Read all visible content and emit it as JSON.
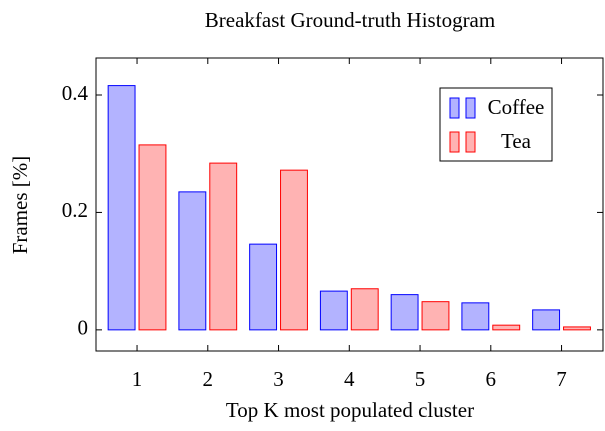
{
  "chart_data": {
    "type": "bar",
    "title": "Breakfast Ground-truth Histogram",
    "x_label": "Top K most populated cluster",
    "y_label": "Frames [%]",
    "x": [
      1,
      2,
      3,
      4,
      5,
      6,
      7
    ],
    "series": [
      {
        "name": "Coffee",
        "color": "#0000ff",
        "fill": "#b3b3ff",
        "values": [
          0.416,
          0.235,
          0.146,
          0.066,
          0.06,
          0.046,
          0.034
        ]
      },
      {
        "name": "Tea",
        "color": "#ff0000",
        "fill": "#ffb3b3",
        "values": [
          0.315,
          0.284,
          0.272,
          0.07,
          0.048,
          0.008,
          0.005
        ]
      }
    ],
    "xlim": [
      0.42,
      7.6
    ],
    "xticks": [
      1,
      2,
      3,
      4,
      5,
      6,
      7
    ],
    "ylim": [
      -0.036,
      0.463
    ],
    "yticks": [
      0,
      0.2,
      0.4
    ],
    "legend": "north east"
  }
}
